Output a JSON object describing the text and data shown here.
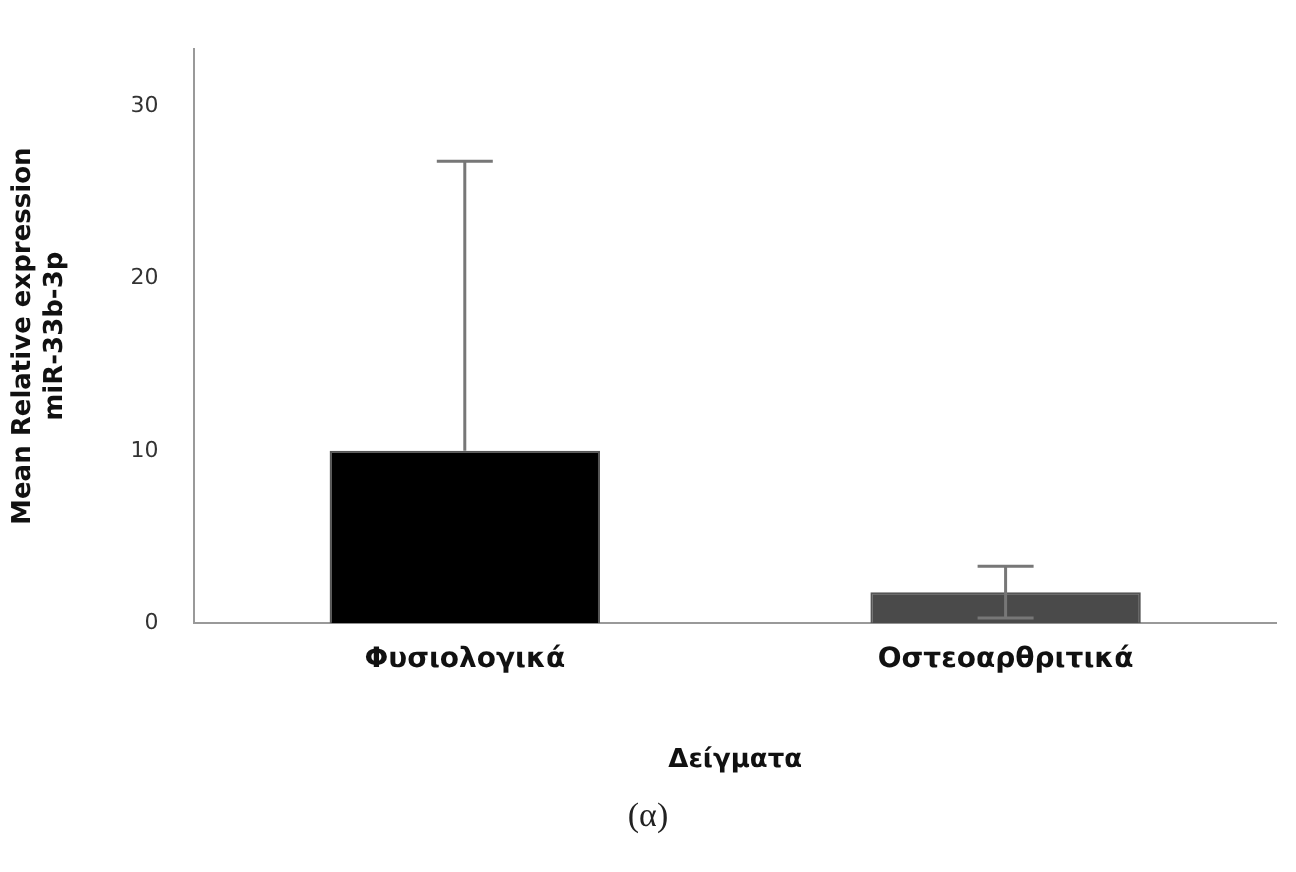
{
  "chart_data": {
    "type": "bar",
    "categories": [
      "Φυσιολογικά",
      "Οστεοαρθριτικά"
    ],
    "colors": [
      "#000000",
      "#4a4a4a"
    ],
    "values": [
      10.0,
      1.8
    ],
    "errors": [
      [
        10.0,
        26.8
      ],
      [
        0.3,
        3.3
      ]
    ],
    "ylim": [
      0,
      33.3
    ],
    "yticks": [
      0,
      10,
      20,
      30
    ],
    "ylabel": "Mean Relative expression\nmiR-33b-3p",
    "xlabel": "Δείγματα",
    "annotations": [
      "(α)"
    ],
    "grid": false,
    "legend": false
  }
}
